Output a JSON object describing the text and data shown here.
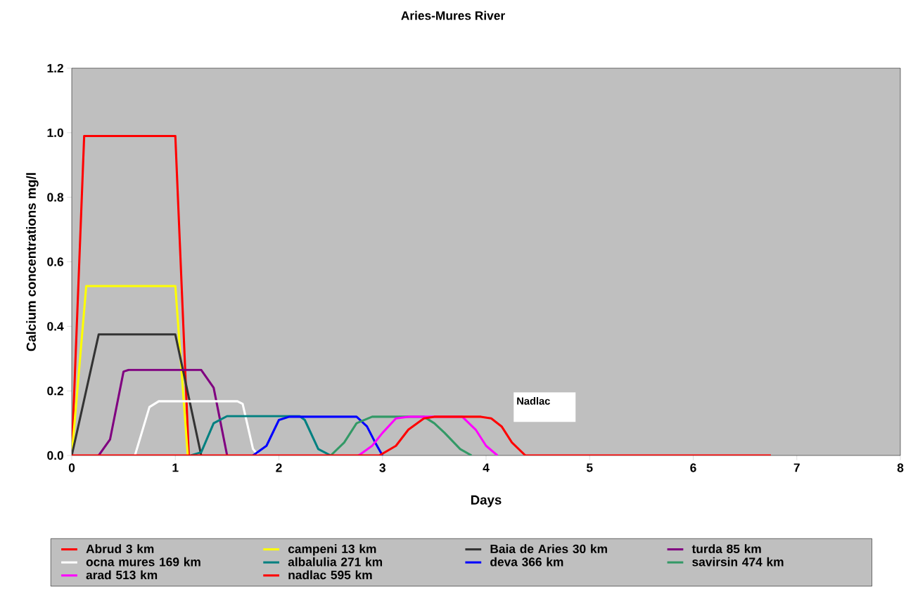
{
  "chart_data": {
    "type": "line",
    "title": "Aries-Mures River",
    "xlabel": "Days",
    "ylabel": "Calcium concentrations mg/l",
    "xlim": [
      0,
      8
    ],
    "xticks": [
      0,
      1,
      2,
      3,
      4,
      5,
      6,
      7,
      8
    ],
    "ylim": [
      0,
      1.2
    ],
    "yticks": [
      {
        "value": 0,
        "label": "0.0"
      },
      {
        "value": 0.2,
        "label": "0.2"
      },
      {
        "value": 0.4,
        "label": "0.4"
      },
      {
        "value": 0.6,
        "label": "0.6"
      },
      {
        "value": 0.8,
        "label": "0.8"
      },
      {
        "value": 1.0,
        "label": "1.0"
      },
      {
        "value": 1.2,
        "label": "1.2"
      }
    ],
    "grid": false,
    "legend": "bottom",
    "marker": "none",
    "line_style": "solid",
    "annotations": [
      "Nadlac"
    ],
    "series": [
      {
        "name": "Abrud 3 km",
        "color": "#ff0000",
        "x": [
          0,
          0.12,
          1.0,
          1.13
        ],
        "values": [
          0,
          0.99,
          0.99,
          0
        ]
      },
      {
        "name": "campeni 13 km",
        "color": "#ffff00",
        "x": [
          0,
          0.14,
          1.0,
          1.12
        ],
        "values": [
          0,
          0.525,
          0.525,
          0
        ]
      },
      {
        "name": "Baia de Aries 30 km",
        "color": "#333333",
        "x": [
          0,
          0.26,
          1.0,
          1.25
        ],
        "values": [
          0,
          0.375,
          0.375,
          0
        ]
      },
      {
        "name": "turda 85 km",
        "color": "#800080",
        "x": [
          0.26,
          0.37,
          0.5,
          0.55,
          1.25,
          1.37,
          1.5
        ],
        "values": [
          0,
          0.05,
          0.26,
          0.265,
          0.265,
          0.21,
          0
        ]
      },
      {
        "name": "ocna mures 169 km",
        "color": "#ffffff",
        "x": [
          0.61,
          0.75,
          0.84,
          1.6,
          1.65,
          1.75,
          1.8
        ],
        "values": [
          0,
          0.15,
          0.168,
          0.168,
          0.16,
          0.02,
          0
        ]
      },
      {
        "name": "albalulia 271 km",
        "color": "#008080",
        "x": [
          1.15,
          1.25,
          1.37,
          1.5,
          2.2,
          2.25,
          2.38,
          2.5
        ],
        "values": [
          0,
          0.01,
          0.1,
          0.122,
          0.122,
          0.11,
          0.02,
          0
        ]
      },
      {
        "name": "deva 366 km",
        "color": "#0000ff",
        "x": [
          1.75,
          1.88,
          2.0,
          2.1,
          2.75,
          2.85,
          2.93,
          3.0
        ],
        "values": [
          0,
          0.03,
          0.11,
          0.12,
          0.12,
          0.09,
          0.04,
          0
        ]
      },
      {
        "name": "savirsin 474 km",
        "color": "#339966",
        "x": [
          2.5,
          2.63,
          2.75,
          2.9,
          3.4,
          3.5,
          3.6,
          3.75,
          3.86
        ],
        "values": [
          0,
          0.04,
          0.1,
          0.12,
          0.12,
          0.1,
          0.07,
          0.02,
          0
        ]
      },
      {
        "name": "arad 513 km",
        "color": "#ff00ff",
        "x": [
          2.77,
          2.9,
          3.0,
          3.13,
          3.25,
          3.77,
          3.9,
          4.0,
          4.11
        ],
        "values": [
          0,
          0.03,
          0.07,
          0.115,
          0.12,
          0.12,
          0.08,
          0.03,
          0
        ]
      },
      {
        "name": "nadlac 595 km",
        "color": "#ff0000",
        "x": [
          0,
          2.97,
          3.13,
          3.25,
          3.4,
          3.5,
          3.95,
          4.05,
          4.15,
          4.25,
          4.38,
          6.75
        ],
        "values": [
          0,
          0,
          0.03,
          0.08,
          0.115,
          0.12,
          0.12,
          0.115,
          0.09,
          0.04,
          0,
          0
        ]
      }
    ]
  }
}
